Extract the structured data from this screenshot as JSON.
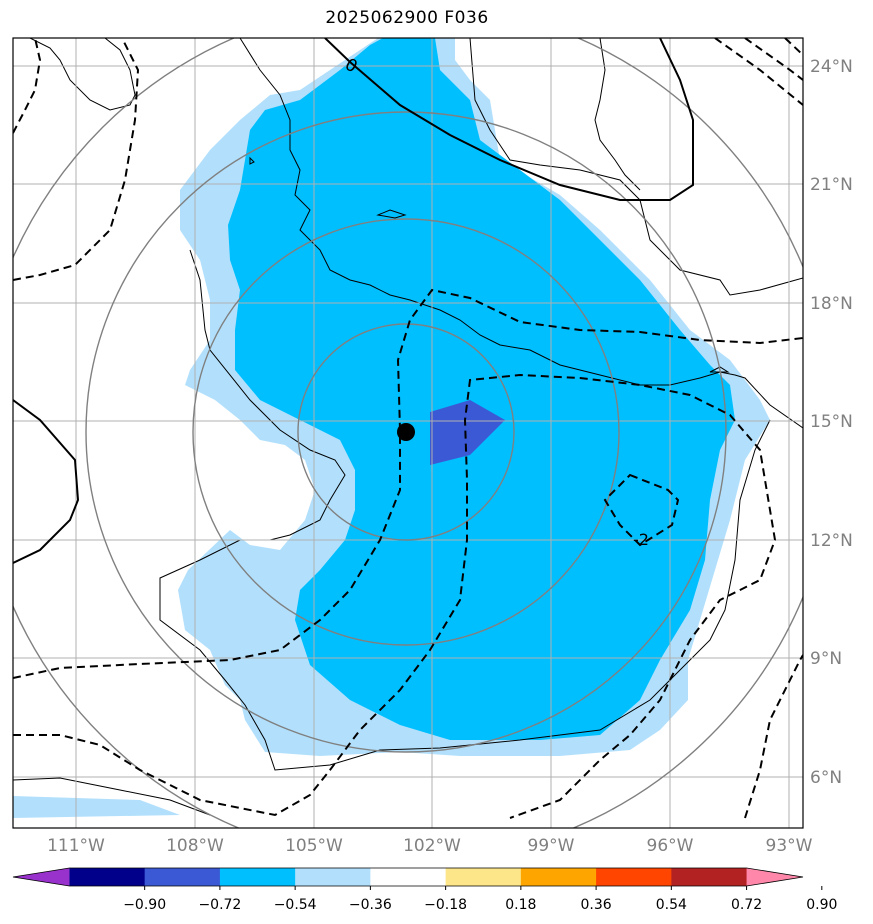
{
  "title": "2025062900 F036",
  "map": {
    "lon_ticks": [
      "111°W",
      "108°W",
      "105°W",
      "102°W",
      "99°W",
      "96°W",
      "93°W"
    ],
    "lat_ticks": [
      "24°N",
      "21°N",
      "18°N",
      "15°N",
      "12°N",
      "9°N",
      "6°N"
    ],
    "contour_labels": [
      "0",
      "-2"
    ],
    "storm_center": {
      "lat": 14.7,
      "lon": -102.6
    },
    "colors": {
      "shade_light": "#b2e0fc",
      "shade_mid": "#00bfff",
      "shade_dark": "#3b59d4",
      "grid": "#b0b0b0",
      "range_rings": "#808080"
    }
  },
  "colorbar": {
    "labels": [
      "−0.90",
      "−0.72",
      "−0.54",
      "−0.36",
      "−0.18",
      "0.18",
      "0.36",
      "0.54",
      "0.72",
      "0.90"
    ],
    "colors": [
      "#9932cc",
      "#00008b",
      "#3b59d4",
      "#00bfff",
      "#b2e0fc",
      "#ffffff",
      "#fde68a",
      "#ffa500",
      "#ff4500",
      "#b22222",
      "#ff88aa"
    ]
  }
}
